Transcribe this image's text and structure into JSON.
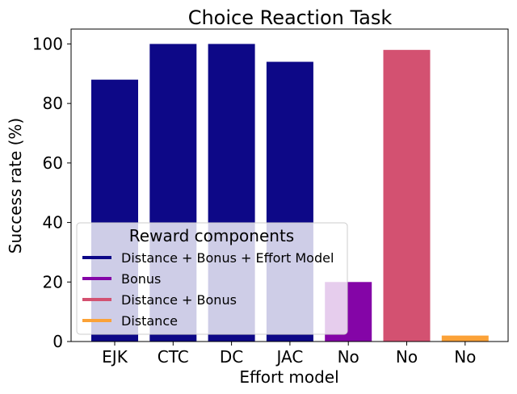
{
  "chart_data": {
    "type": "bar",
    "title": "Choice Reaction Task",
    "xlabel": "Effort model",
    "ylabel": "Success rate (%)",
    "ylim": [
      0,
      105
    ],
    "yticks": [
      0,
      20,
      40,
      60,
      80,
      100
    ],
    "categories": [
      "EJK",
      "CTC",
      "DC",
      "JAC",
      "No",
      "No",
      "No"
    ],
    "values": [
      88,
      100,
      100,
      94,
      20,
      98,
      2
    ],
    "bar_series": [
      "Distance + Bonus + Effort Model",
      "Distance + Bonus + Effort Model",
      "Distance + Bonus + Effort Model",
      "Distance + Bonus + Effort Model",
      "Bonus",
      "Distance + Bonus",
      "Distance"
    ],
    "legend": {
      "title": "Reward components",
      "placement": "lower-left",
      "entries": [
        {
          "name": "Distance + Bonus + Effort Model",
          "color": "#0d0887"
        },
        {
          "name": "Bonus",
          "color": "#8405a7"
        },
        {
          "name": "Distance + Bonus",
          "color": "#d35171"
        },
        {
          "name": "Distance",
          "color": "#fba238"
        }
      ]
    },
    "grid": false
  }
}
